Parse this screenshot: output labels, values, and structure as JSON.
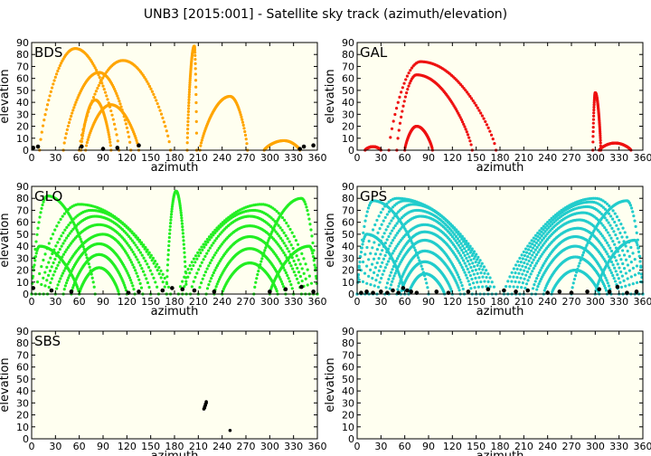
{
  "title": "UNB3 [2015:001] - Satellite sky track (azimuth/elevation)",
  "colors": {
    "background": "#ffffff",
    "plot_background": "#fffff0",
    "frame": "#000000",
    "start_marker": "#000000",
    "BDS": "#ffa500",
    "GAL": "#ee1111",
    "GLO": "#22ee22",
    "GPS": "#22cccc",
    "SBS": "#000000"
  },
  "chart_data": [
    {
      "type": "scatter",
      "panel": "BDS",
      "system_label": "BDS",
      "xlabel": "azimuth",
      "ylabel": "elevation",
      "xlim": [
        0,
        360
      ],
      "ylim": [
        0,
        90
      ],
      "xticks": [
        0,
        30,
        60,
        90,
        120,
        150,
        180,
        210,
        240,
        270,
        300,
        330,
        360
      ],
      "yticks": [
        0,
        10,
        20,
        30,
        40,
        50,
        60,
        70,
        80,
        90
      ],
      "color": "#ffa500",
      "arcs": [
        {
          "az_start": 10,
          "az_end": 110,
          "peak_az": 55,
          "peak_el": 85
        },
        {
          "az_start": 40,
          "az_end": 125,
          "peak_az": 85,
          "peak_el": 65
        },
        {
          "az_start": 60,
          "az_end": 175,
          "peak_az": 115,
          "peak_el": 75
        },
        {
          "az_start": 62,
          "az_end": 100,
          "peak_az": 80,
          "peak_el": 42
        },
        {
          "az_start": 68,
          "az_end": 135,
          "peak_az": 100,
          "peak_el": 38
        },
        {
          "az_start": 196,
          "az_end": 208,
          "peak_az": 205,
          "peak_el": 87
        },
        {
          "az_start": 212,
          "az_end": 272,
          "peak_az": 250,
          "peak_el": 45
        },
        {
          "az_start": 293,
          "az_end": 338,
          "peak_az": 318,
          "peak_el": 8
        }
      ],
      "start_points": [
        [
          2,
          2
        ],
        [
          8,
          3
        ],
        [
          63,
          3
        ],
        [
          90,
          1
        ],
        [
          108,
          2
        ],
        [
          135,
          4
        ],
        [
          338,
          1
        ],
        [
          343,
          3
        ],
        [
          355,
          4
        ]
      ]
    },
    {
      "type": "scatter",
      "panel": "GAL",
      "system_label": "GAL",
      "xlabel": "azimuth",
      "ylabel": "elevation",
      "xlim": [
        0,
        360
      ],
      "ylim": [
        0,
        90
      ],
      "xticks": [
        0,
        30,
        60,
        90,
        120,
        150,
        180,
        210,
        240,
        270,
        300,
        330,
        360
      ],
      "yticks": [
        0,
        10,
        20,
        30,
        40,
        50,
        60,
        70,
        80,
        90
      ],
      "color": "#ee1111",
      "arcs": [
        {
          "az_start": 10,
          "az_end": 30,
          "peak_az": 20,
          "peak_el": 3
        },
        {
          "az_start": 40,
          "az_end": 175,
          "peak_az": 80,
          "peak_el": 74
        },
        {
          "az_start": 50,
          "az_end": 145,
          "peak_az": 75,
          "peak_el": 63
        },
        {
          "az_start": 60,
          "az_end": 95,
          "peak_az": 75,
          "peak_el": 20
        },
        {
          "az_start": 297,
          "az_end": 307,
          "peak_az": 300,
          "peak_el": 48
        },
        {
          "az_start": 305,
          "az_end": 345,
          "peak_az": 325,
          "peak_el": 6
        }
      ],
      "start_points": []
    },
    {
      "type": "scatter",
      "panel": "GLO",
      "system_label": "GLO",
      "xlabel": "azimuth",
      "ylabel": "elevation",
      "xlim": [
        0,
        360
      ],
      "ylim": [
        0,
        90
      ],
      "xticks": [
        0,
        30,
        60,
        90,
        120,
        150,
        180,
        210,
        240,
        270,
        300,
        330,
        360
      ],
      "yticks": [
        0,
        10,
        20,
        30,
        40,
        50,
        60,
        70,
        80,
        90
      ],
      "color": "#22ee22",
      "arcs": [
        {
          "az_start": 5,
          "az_end": 175,
          "peak_az": 60,
          "peak_el": 75
        },
        {
          "az_start": 10,
          "az_end": 170,
          "peak_az": 75,
          "peak_el": 70
        },
        {
          "az_start": 15,
          "az_end": 160,
          "peak_az": 80,
          "peak_el": 65
        },
        {
          "az_start": 20,
          "az_end": 150,
          "peak_az": 85,
          "peak_el": 58
        },
        {
          "az_start": 30,
          "az_end": 140,
          "peak_az": 90,
          "peak_el": 50
        },
        {
          "az_start": 40,
          "az_end": 130,
          "peak_az": 85,
          "peak_el": 42
        },
        {
          "az_start": 50,
          "az_end": 120,
          "peak_az": 85,
          "peak_el": 33
        },
        {
          "az_start": 60,
          "az_end": 110,
          "peak_az": 85,
          "peak_el": 22
        },
        {
          "az_start": 0,
          "az_end": 80,
          "peak_az": 20,
          "peak_el": 82
        },
        {
          "az_start": 0,
          "az_end": 60,
          "peak_az": 10,
          "peak_el": 40
        },
        {
          "az_start": 185,
          "az_end": 355,
          "peak_az": 290,
          "peak_el": 75
        },
        {
          "az_start": 190,
          "az_end": 350,
          "peak_az": 280,
          "peak_el": 70
        },
        {
          "az_start": 200,
          "az_end": 345,
          "peak_az": 275,
          "peak_el": 65
        },
        {
          "az_start": 210,
          "az_end": 340,
          "peak_az": 275,
          "peak_el": 57
        },
        {
          "az_start": 220,
          "az_end": 330,
          "peak_az": 275,
          "peak_el": 48
        },
        {
          "az_start": 230,
          "az_end": 320,
          "peak_az": 275,
          "peak_el": 38
        },
        {
          "az_start": 240,
          "az_end": 310,
          "peak_az": 275,
          "peak_el": 26
        },
        {
          "az_start": 280,
          "az_end": 360,
          "peak_az": 340,
          "peak_el": 80
        },
        {
          "az_start": 300,
          "az_end": 360,
          "peak_az": 350,
          "peak_el": 40
        },
        {
          "az_start": 170,
          "az_end": 195,
          "peak_az": 182,
          "peak_el": 86
        }
      ],
      "start_points": [
        [
          2,
          5
        ],
        [
          25,
          3
        ],
        [
          50,
          2
        ],
        [
          122,
          1
        ],
        [
          135,
          2
        ],
        [
          165,
          3
        ],
        [
          177,
          5
        ],
        [
          190,
          4
        ],
        [
          205,
          3
        ],
        [
          230,
          2
        ],
        [
          300,
          2
        ],
        [
          320,
          4
        ],
        [
          340,
          6
        ],
        [
          355,
          2
        ]
      ]
    },
    {
      "type": "scatter",
      "panel": "GPS",
      "system_label": "GPS",
      "xlabel": "azimuth",
      "ylabel": "elevation",
      "xlim": [
        0,
        360
      ],
      "ylim": [
        0,
        90
      ],
      "xticks": [
        0,
        30,
        60,
        90,
        120,
        150,
        180,
        210,
        240,
        270,
        300,
        330,
        360
      ],
      "yticks": [
        0,
        10,
        20,
        30,
        40,
        50,
        60,
        70,
        80,
        90
      ],
      "color": "#22cccc",
      "arcs": [
        {
          "az_start": 0,
          "az_end": 175,
          "peak_az": 50,
          "peak_el": 80
        },
        {
          "az_start": 5,
          "az_end": 170,
          "peak_az": 60,
          "peak_el": 78
        },
        {
          "az_start": 10,
          "az_end": 165,
          "peak_az": 70,
          "peak_el": 75
        },
        {
          "az_start": 15,
          "az_end": 160,
          "peak_az": 75,
          "peak_el": 70
        },
        {
          "az_start": 20,
          "az_end": 155,
          "peak_az": 80,
          "peak_el": 65
        },
        {
          "az_start": 25,
          "az_end": 150,
          "peak_az": 85,
          "peak_el": 58
        },
        {
          "az_start": 35,
          "az_end": 145,
          "peak_az": 85,
          "peak_el": 52
        },
        {
          "az_start": 40,
          "az_end": 135,
          "peak_az": 85,
          "peak_el": 45
        },
        {
          "az_start": 50,
          "az_end": 130,
          "peak_az": 85,
          "peak_el": 36
        },
        {
          "az_start": 55,
          "az_end": 120,
          "peak_az": 85,
          "peak_el": 27
        },
        {
          "az_start": 65,
          "az_end": 110,
          "peak_az": 85,
          "peak_el": 17
        },
        {
          "az_start": 0,
          "az_end": 90,
          "peak_az": 20,
          "peak_el": 78
        },
        {
          "az_start": 0,
          "az_end": 60,
          "peak_az": 12,
          "peak_el": 50
        },
        {
          "az_start": 185,
          "az_end": 360,
          "peak_az": 300,
          "peak_el": 80
        },
        {
          "az_start": 190,
          "az_end": 355,
          "peak_az": 295,
          "peak_el": 77
        },
        {
          "az_start": 195,
          "az_end": 350,
          "peak_az": 290,
          "peak_el": 73
        },
        {
          "az_start": 200,
          "az_end": 345,
          "peak_az": 285,
          "peak_el": 68
        },
        {
          "az_start": 205,
          "az_end": 340,
          "peak_az": 280,
          "peak_el": 62
        },
        {
          "az_start": 210,
          "az_end": 335,
          "peak_az": 278,
          "peak_el": 55
        },
        {
          "az_start": 220,
          "az_end": 330,
          "peak_az": 275,
          "peak_el": 48
        },
        {
          "az_start": 225,
          "az_end": 320,
          "peak_az": 275,
          "peak_el": 40
        },
        {
          "az_start": 235,
          "az_end": 315,
          "peak_az": 275,
          "peak_el": 31
        },
        {
          "az_start": 245,
          "az_end": 305,
          "peak_az": 275,
          "peak_el": 20
        },
        {
          "az_start": 270,
          "az_end": 360,
          "peak_az": 340,
          "peak_el": 78
        },
        {
          "az_start": 300,
          "az_end": 360,
          "peak_az": 350,
          "peak_el": 45
        }
      ],
      "start_points": [
        [
          5,
          1
        ],
        [
          12,
          2
        ],
        [
          20,
          1
        ],
        [
          30,
          2
        ],
        [
          38,
          1
        ],
        [
          45,
          3
        ],
        [
          52,
          1
        ],
        [
          58,
          5
        ],
        [
          63,
          3
        ],
        [
          68,
          2
        ],
        [
          75,
          1
        ],
        [
          100,
          2
        ],
        [
          115,
          1
        ],
        [
          140,
          2
        ],
        [
          165,
          4
        ],
        [
          185,
          3
        ],
        [
          200,
          2
        ],
        [
          215,
          3
        ],
        [
          240,
          1
        ],
        [
          255,
          2
        ],
        [
          270,
          1
        ],
        [
          290,
          2
        ],
        [
          305,
          4
        ],
        [
          318,
          2
        ],
        [
          328,
          6
        ],
        [
          340,
          1
        ],
        [
          352,
          2
        ]
      ]
    },
    {
      "type": "scatter",
      "panel": "SBS",
      "system_label": "SBS",
      "xlabel": "azimuth",
      "ylabel": "elevation",
      "xlim": [
        0,
        360
      ],
      "ylim": [
        0,
        90
      ],
      "xticks": [
        0,
        30,
        60,
        90,
        120,
        150,
        180,
        210,
        240,
        270,
        300,
        330,
        360
      ],
      "yticks": [
        0,
        10,
        20,
        30,
        40,
        50,
        60,
        70,
        80,
        90
      ],
      "color": "#000000",
      "arcs": [],
      "points": [
        [
          217,
          25
        ],
        [
          218,
          26
        ],
        [
          218,
          27
        ],
        [
          219,
          28
        ],
        [
          219,
          29
        ],
        [
          220,
          30
        ],
        [
          220,
          31
        ],
        [
          250,
          7
        ]
      ],
      "start_points": []
    },
    {
      "type": "scatter",
      "panel": "empty",
      "system_label": "",
      "xlabel": "azimuth",
      "ylabel": "elevation",
      "xlim": [
        0,
        360
      ],
      "ylim": [
        0,
        90
      ],
      "xticks": [
        0,
        30,
        60,
        90,
        120,
        150,
        180,
        210,
        240,
        270,
        300,
        330,
        360
      ],
      "yticks": [
        0,
        10,
        20,
        30,
        40,
        50,
        60,
        70,
        80,
        90
      ],
      "color": "#000000",
      "arcs": [],
      "start_points": []
    }
  ]
}
